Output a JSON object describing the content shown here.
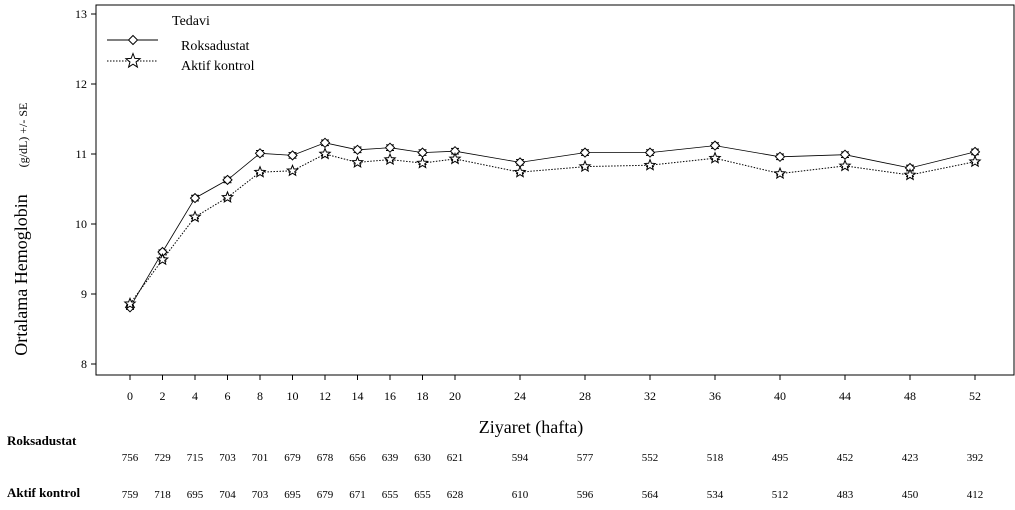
{
  "chart_data": {
    "type": "line",
    "ylabel_main": "Ortalama Hemoglobin",
    "ylabel_unit": "(g/dL) +/- SE",
    "xlabel": "Ziyaret (hafta)",
    "ylim": [
      8,
      13
    ],
    "y_ticks": [
      8,
      9,
      10,
      11,
      12,
      13
    ],
    "x_ticks": [
      0,
      2,
      4,
      6,
      8,
      10,
      12,
      14,
      16,
      18,
      20,
      24,
      28,
      32,
      36,
      40,
      44,
      48,
      52
    ],
    "grid": false,
    "legend": {
      "title": "Tedavi",
      "placement": "top-left"
    },
    "series": [
      {
        "name": "Roksadustat",
        "marker": "diamond",
        "line_style": "solid",
        "x": [
          0,
          2,
          4,
          6,
          8,
          10,
          12,
          14,
          16,
          18,
          20,
          24,
          28,
          32,
          36,
          40,
          44,
          48,
          52
        ],
        "values": [
          8.81,
          9.6,
          10.37,
          10.63,
          11.01,
          10.98,
          11.16,
          11.06,
          11.09,
          11.02,
          11.04,
          10.88,
          11.02,
          11.02,
          11.12,
          10.96,
          10.99,
          10.8,
          11.03
        ],
        "se": [
          0.03,
          0.03,
          0.04,
          0.04,
          0.04,
          0.04,
          0.04,
          0.04,
          0.04,
          0.04,
          0.04,
          0.04,
          0.04,
          0.04,
          0.04,
          0.04,
          0.04,
          0.04,
          0.04
        ]
      },
      {
        "name": "Aktif kontrol",
        "marker": "star",
        "line_style": "dotted",
        "x": [
          0,
          2,
          4,
          6,
          8,
          10,
          12,
          14,
          16,
          18,
          20,
          24,
          28,
          32,
          36,
          40,
          44,
          48,
          52
        ],
        "values": [
          8.86,
          9.49,
          10.1,
          10.38,
          10.74,
          10.76,
          11.0,
          10.88,
          10.92,
          10.87,
          10.93,
          10.74,
          10.82,
          10.84,
          10.94,
          10.72,
          10.83,
          10.7,
          10.89
        ],
        "se": [
          0.02,
          0.02,
          0.02,
          0.02,
          0.02,
          0.02,
          0.02,
          0.02,
          0.02,
          0.02,
          0.02,
          0.02,
          0.02,
          0.02,
          0.02,
          0.02,
          0.02,
          0.02,
          0.02
        ]
      }
    ],
    "at_risk": [
      {
        "label": "Roksadustat",
        "counts": [
          756,
          729,
          715,
          703,
          701,
          679,
          678,
          656,
          639,
          630,
          621,
          594,
          577,
          552,
          518,
          495,
          452,
          423,
          392
        ]
      },
      {
        "label": "Aktif kontrol",
        "counts": [
          759,
          718,
          695,
          704,
          703,
          695,
          679,
          671,
          655,
          655,
          628,
          610,
          596,
          564,
          534,
          512,
          483,
          450,
          412
        ]
      }
    ]
  }
}
